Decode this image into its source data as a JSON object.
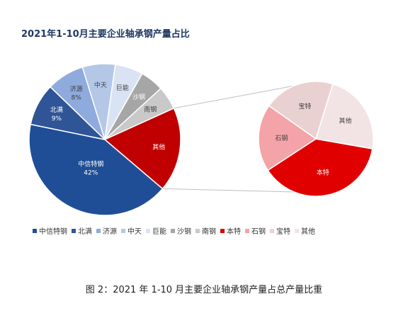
{
  "figure_caption": "图 2：2021 年 1-10 月主要企业轴承钢产量占总产量比重",
  "chart_data": [
    {
      "type": "pie",
      "title": "2021年1-10月主要企业轴承钢产量占比",
      "legend_position": "bottom",
      "slices": [
        {
          "label": "中信特钢",
          "value": 42,
          "value_label": "42%",
          "color": "#1f4e96"
        },
        {
          "label": "北满",
          "value": 9,
          "value_label": "9%",
          "color": "#2f5597"
        },
        {
          "label": "济源",
          "value": 8,
          "value_label": "8%",
          "color": "#8faadc"
        },
        {
          "label": "中天",
          "value": 7,
          "value_label": "",
          "color": "#b4c7e7"
        },
        {
          "label": "巨能",
          "value": 6,
          "value_label": "",
          "color": "#dae3f3"
        },
        {
          "label": "沙钢",
          "value": 5,
          "value_label": "",
          "color": "#a6a6a6"
        },
        {
          "label": "南钢",
          "value": 5,
          "value_label": "",
          "color": "#c9c9c9"
        },
        {
          "label": "其他",
          "value": 18,
          "value_label": "",
          "color": "#c00000"
        }
      ]
    },
    {
      "type": "pie",
      "breakdown_of": "其他",
      "slices": [
        {
          "label": "本特",
          "value": 38,
          "color": "#e00000"
        },
        {
          "label": "石钢",
          "value": 19,
          "color": "#f4a3a8"
        },
        {
          "label": "宝特",
          "value": 20,
          "color": "#ead1d1"
        },
        {
          "label": "其他",
          "value": 23,
          "color": "#f2e4e4"
        }
      ]
    }
  ],
  "legend": [
    {
      "label": "中信特钢",
      "color": "#1f4e96"
    },
    {
      "label": "北满",
      "color": "#2f5597"
    },
    {
      "label": "济源",
      "color": "#8faadc"
    },
    {
      "label": "中天",
      "color": "#b4c7e7"
    },
    {
      "label": "巨能",
      "color": "#dae3f3"
    },
    {
      "label": "沙钢",
      "color": "#a6a6a6"
    },
    {
      "label": "南钢",
      "color": "#c9c9c9"
    },
    {
      "label": "本特",
      "color": "#e00000"
    },
    {
      "label": "石钢",
      "color": "#f4a3a8"
    },
    {
      "label": "宝特",
      "color": "#ead1d1"
    },
    {
      "label": "其他",
      "color": "#f2e4e4"
    }
  ]
}
